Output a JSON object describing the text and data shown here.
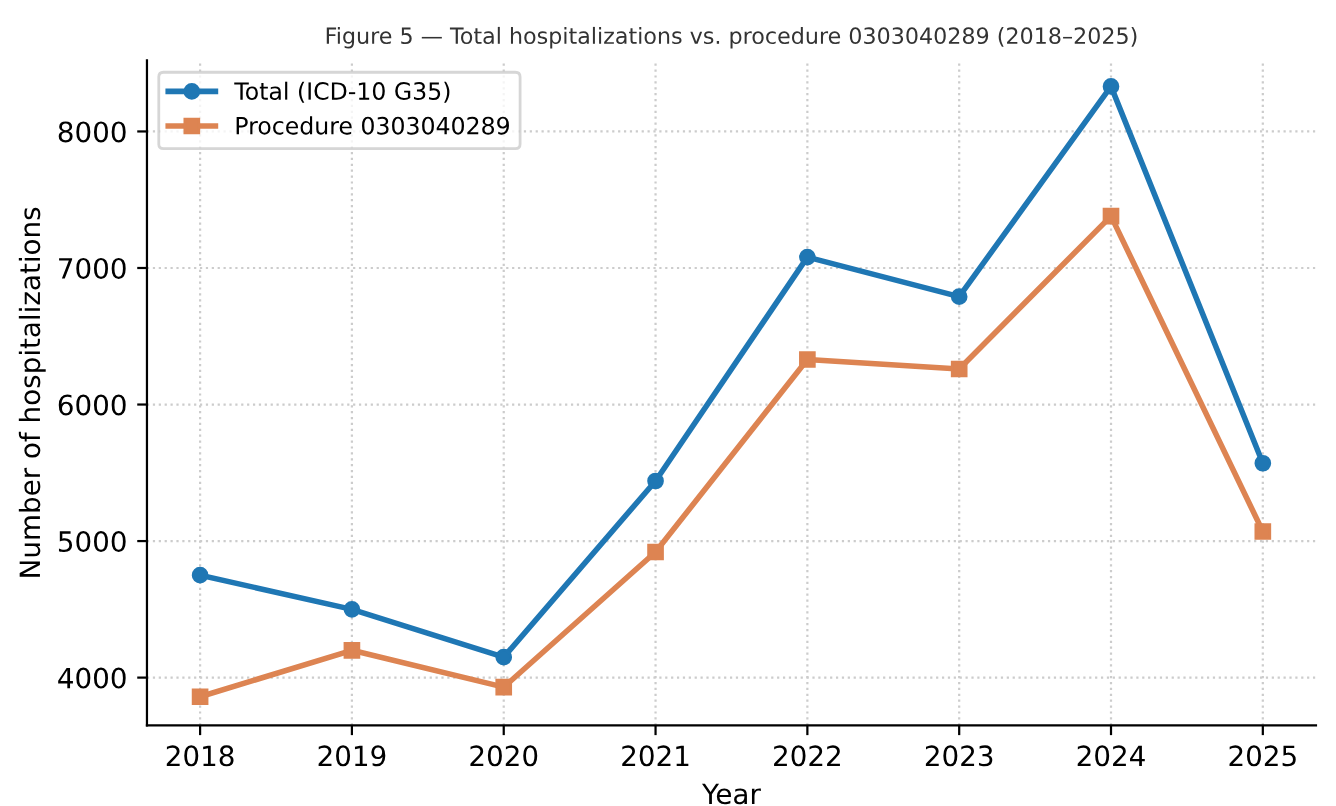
{
  "chart_data": {
    "type": "line",
    "title": "Figure 5 — Total hospitalizations vs. procedure 0303040289 (2018–2025)",
    "xlabel": "Year",
    "ylabel": "Number of hospitalizations",
    "x": [
      2018,
      2019,
      2020,
      2021,
      2022,
      2023,
      2024,
      2025
    ],
    "series": [
      {
        "name": "Total (ICD-10 G35)",
        "color": "#1f77b4",
        "marker": "circle",
        "values": [
          4750,
          4500,
          4150,
          5440,
          7080,
          6790,
          8330,
          5570
        ]
      },
      {
        "name": "Procedure 0303040289",
        "color": "#dd8452",
        "marker": "square",
        "values": [
          3860,
          4200,
          3930,
          4920,
          6330,
          6260,
          7380,
          5070
        ]
      }
    ],
    "xlim": [
      2017.65,
      2025.35
    ],
    "xticks": [
      2018,
      2019,
      2020,
      2021,
      2022,
      2023,
      2024,
      2025
    ],
    "ylim": [
      3650,
      8520
    ],
    "yticks": [
      4000,
      5000,
      6000,
      7000,
      8000
    ],
    "grid": true,
    "legend": "top left",
    "line_style": "solid"
  }
}
